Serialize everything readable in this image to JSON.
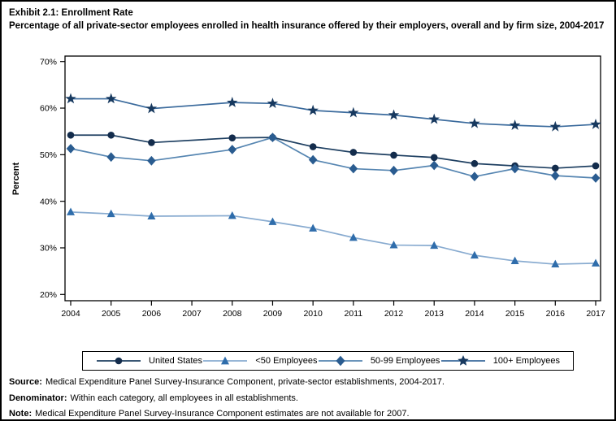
{
  "title": "Exhibit 2.1: Enrollment Rate",
  "subtitle": "Percentage of all private-sector employees enrolled in health insurance offered by their employers, overall and by firm size, 2004-2017",
  "chart_data": {
    "type": "line",
    "x": [
      2004,
      2005,
      2006,
      2007,
      2008,
      2009,
      2010,
      2011,
      2012,
      2013,
      2014,
      2015,
      2016,
      2017
    ],
    "x_tick_labels": [
      "2004",
      "2005",
      "2006",
      "2007",
      "2008",
      "2009",
      "2010",
      "2011",
      "2012",
      "2013",
      "2014",
      "2015",
      "2016",
      "2017"
    ],
    "xlabel": "",
    "ylabel": "Percent",
    "ylim": [
      20,
      70
    ],
    "ytick_step": 10,
    "ytick_labels": [
      "70%",
      "60%",
      "50%",
      "40%",
      "30%",
      "20%"
    ],
    "grid": false,
    "legend_position": "bottom",
    "plot_border_color": "#000000",
    "series": [
      {
        "name": "United States",
        "marker": "circle",
        "line_color": "#1e3f61",
        "marker_color": "#132c4c",
        "values": [
          54.2,
          54.2,
          52.6,
          null,
          53.6,
          53.7,
          51.7,
          50.5,
          49.9,
          49.4,
          48.1,
          47.6,
          47.1,
          47.6
        ]
      },
      {
        "name": "<50 Employees",
        "marker": "triangle",
        "line_color": "#88abd0",
        "marker_color": "#2f6dab",
        "values": [
          37.7,
          37.3,
          36.8,
          null,
          36.9,
          35.6,
          34.2,
          32.2,
          30.6,
          30.5,
          28.4,
          27.2,
          26.5,
          26.7
        ]
      },
      {
        "name": "50-99 Employees",
        "marker": "diamond",
        "line_color": "#5585b1",
        "marker_color": "#2a5c90",
        "values": [
          51.3,
          49.5,
          48.7,
          null,
          51.1,
          53.7,
          48.9,
          47.0,
          46.6,
          47.7,
          45.3,
          47.0,
          45.5,
          45.0
        ]
      },
      {
        "name": "100+ Employees",
        "marker": "star",
        "line_color": "#3a6a9c",
        "marker_color": "#17395f",
        "values": [
          62.0,
          62.0,
          59.9,
          null,
          61.2,
          61.0,
          59.5,
          59.0,
          58.5,
          57.6,
          56.7,
          56.3,
          56.0,
          56.5
        ]
      }
    ]
  },
  "footer": {
    "lines": [
      {
        "label": "Source:",
        "text": "Medical Expenditure Panel Survey-Insurance Component, private-sector establishments, 2004-2017."
      },
      {
        "label": "Denominator:",
        "text": "Within each category, all employees in all establishments."
      },
      {
        "label": "Note:",
        "text": "Medical Expenditure Panel Survey-Insurance Component estimates are not available for 2007."
      }
    ]
  }
}
